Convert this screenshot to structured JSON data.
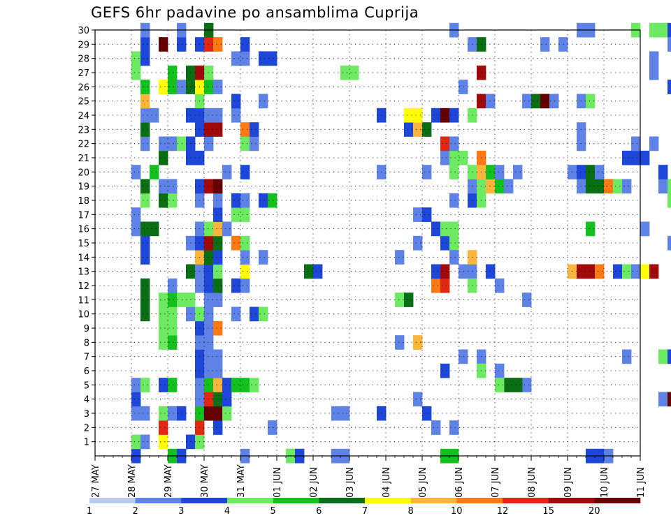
{
  "title": "GEFS 6hr padavine po ansamblima Cuprija",
  "chart_data": {
    "type": "heatmap",
    "title": "GEFS 6hr padavine po ansamblima Cuprija",
    "xlabel": "",
    "ylabel": "",
    "x_ticks": [
      "27 MAY",
      "28 MAY",
      "29 MAY",
      "30 MAY",
      "31 MAY",
      "01 JUN",
      "02 JUN",
      "03 JUN",
      "04 JUN",
      "05 JUN",
      "06 JUN",
      "07 JUN",
      "08 JUN",
      "09 JUN",
      "10 JUN",
      "11 JUN"
    ],
    "x_step": "6hr",
    "y_ticks": [
      1,
      2,
      3,
      4,
      5,
      6,
      7,
      8,
      9,
      10,
      11,
      12,
      13,
      14,
      15,
      16,
      17,
      18,
      19,
      20,
      21,
      22,
      23,
      24,
      25,
      26,
      27,
      28,
      29,
      30
    ],
    "ylim": [
      0,
      30
    ],
    "grid": true,
    "levels": [
      "1",
      "2",
      "3",
      "4",
      "5",
      "6",
      "7",
      "8",
      "10",
      "12",
      "15",
      "20"
    ],
    "level_colors": [
      "#bcc8ee",
      "#5f82e6",
      "#1e46d8",
      "#6eea62",
      "#14c01e",
      "#0a6e14",
      "#ffff00",
      "#ffb43c",
      "#ff7a14",
      "#e02814",
      "#a00a0a",
      "#640000"
    ],
    "cells": [
      [
        28,
        0,
        2
      ],
      [
        29,
        0,
        4
      ],
      [
        31,
        0,
        1
      ],
      [
        29.25,
        0,
        2
      ],
      [
        28,
        1,
        3
      ],
      [
        28.25,
        1,
        1
      ],
      [
        28.75,
        1,
        6
      ],
      [
        29.5,
        1,
        2
      ],
      [
        29.75,
        1,
        3
      ],
      [
        28.75,
        2,
        9
      ],
      [
        29.75,
        2,
        9
      ],
      [
        30.25,
        2,
        2
      ],
      [
        31.75,
        2,
        1
      ],
      [
        28,
        3,
        1
      ],
      [
        28.25,
        3,
        1
      ],
      [
        28.75,
        3,
        3
      ],
      [
        29,
        3,
        1
      ],
      [
        29.25,
        3,
        2
      ],
      [
        29.75,
        3,
        4
      ],
      [
        30,
        3,
        11
      ],
      [
        30.25,
        3,
        11
      ],
      [
        30.5,
        3,
        3
      ],
      [
        28,
        4,
        2
      ],
      [
        29.75,
        4,
        1
      ],
      [
        30,
        4,
        9
      ],
      [
        30.25,
        4,
        5
      ],
      [
        30.5,
        4,
        2
      ],
      [
        28,
        5,
        1
      ],
      [
        28.25,
        5,
        3
      ],
      [
        28.75,
        5,
        2
      ],
      [
        29,
        5,
        4
      ],
      [
        29.75,
        5,
        1
      ],
      [
        30,
        5,
        4
      ],
      [
        30.25,
        5,
        7
      ],
      [
        30.5,
        5,
        2
      ],
      [
        30.75,
        5,
        4
      ],
      [
        31,
        5,
        4
      ],
      [
        31.25,
        5,
        3
      ],
      [
        29.75,
        6,
        2
      ],
      [
        30,
        6,
        1
      ],
      [
        30.25,
        6,
        1
      ],
      [
        29.75,
        7,
        2
      ],
      [
        30,
        7,
        1
      ],
      [
        30.25,
        7,
        1
      ],
      [
        28.75,
        8,
        3
      ],
      [
        29,
        8,
        4
      ],
      [
        29.75,
        8,
        1
      ],
      [
        30,
        8,
        1
      ],
      [
        28.75,
        9,
        3
      ],
      [
        29,
        9,
        3
      ],
      [
        29.75,
        9,
        2
      ],
      [
        30,
        9,
        1
      ],
      [
        30.25,
        9,
        8
      ],
      [
        28.25,
        10,
        5
      ],
      [
        28.75,
        10,
        3
      ],
      [
        29,
        10,
        3
      ],
      [
        29.5,
        10,
        1
      ],
      [
        29.75,
        10,
        3
      ],
      [
        30,
        10,
        1
      ],
      [
        30.75,
        10,
        1
      ],
      [
        31.25,
        10,
        2
      ],
      [
        31.5,
        10,
        3
      ],
      [
        28.25,
        11,
        5
      ],
      [
        28.75,
        11,
        3
      ],
      [
        29,
        11,
        4
      ],
      [
        29.25,
        11,
        3
      ],
      [
        29.5,
        11,
        3
      ],
      [
        30,
        11,
        1
      ],
      [
        30.25,
        11,
        1
      ],
      [
        28.25,
        12,
        5
      ],
      [
        29,
        12,
        1
      ],
      [
        29.75,
        12,
        1
      ],
      [
        30,
        12,
        2
      ],
      [
        30.25,
        12,
        5
      ],
      [
        30.75,
        12,
        2
      ],
      [
        31,
        12,
        1
      ],
      [
        29.5,
        13,
        5
      ],
      [
        29.75,
        13,
        1
      ],
      [
        30,
        13,
        2
      ],
      [
        30.25,
        13,
        3
      ],
      [
        31,
        13,
        6
      ],
      [
        28.25,
        14,
        2
      ],
      [
        29.75,
        14,
        7
      ],
      [
        30,
        14,
        5
      ],
      [
        30.25,
        14,
        2
      ],
      [
        31,
        14,
        1
      ],
      [
        31.5,
        14,
        1
      ],
      [
        28.25,
        15,
        2
      ],
      [
        29.5,
        15,
        1
      ],
      [
        29.75,
        15,
        2
      ],
      [
        30,
        15,
        10
      ],
      [
        30.25,
        15,
        5
      ],
      [
        30.75,
        15,
        8
      ],
      [
        31,
        15,
        3
      ],
      [
        28,
        16,
        1
      ],
      [
        28.25,
        16,
        5
      ],
      [
        28.5,
        16,
        5
      ],
      [
        29.75,
        16,
        1
      ],
      [
        30,
        16,
        3
      ],
      [
        30.25,
        16,
        7
      ],
      [
        30.5,
        16,
        1
      ],
      [
        28,
        17,
        1
      ],
      [
        30.25,
        17,
        2
      ],
      [
        30.75,
        17,
        3
      ],
      [
        31,
        17,
        3
      ],
      [
        28.25,
        18,
        3
      ],
      [
        28.75,
        18,
        5
      ],
      [
        29,
        18,
        3
      ],
      [
        29.75,
        18,
        1
      ],
      [
        30.25,
        18,
        1
      ],
      [
        30.75,
        18,
        2
      ],
      [
        31,
        18,
        1
      ],
      [
        31.5,
        18,
        2
      ],
      [
        31.75,
        18,
        4
      ],
      [
        28.25,
        19,
        5
      ],
      [
        28.75,
        19,
        1
      ],
      [
        29,
        19,
        1
      ],
      [
        29.75,
        19,
        2
      ],
      [
        30,
        19,
        10
      ],
      [
        30.25,
        19,
        11
      ],
      [
        28,
        20,
        1
      ],
      [
        28.5,
        20,
        4
      ],
      [
        30.5,
        20,
        1
      ],
      [
        31,
        20,
        2
      ],
      [
        28.75,
        21,
        5
      ],
      [
        29.5,
        21,
        2
      ],
      [
        29.75,
        21,
        2
      ],
      [
        28.25,
        22,
        1
      ],
      [
        28.75,
        22,
        1
      ],
      [
        29,
        22,
        1
      ],
      [
        29.25,
        22,
        3
      ],
      [
        29.5,
        22,
        2
      ],
      [
        30,
        22,
        1
      ],
      [
        31,
        22,
        3
      ],
      [
        31.25,
        22,
        1
      ],
      [
        28.25,
        23,
        5
      ],
      [
        29.75,
        23,
        2
      ],
      [
        30,
        23,
        10
      ],
      [
        30.25,
        23,
        10
      ],
      [
        31,
        23,
        8
      ],
      [
        31.25,
        23,
        2
      ],
      [
        28.25,
        24,
        1
      ],
      [
        28.5,
        24,
        1
      ],
      [
        29.5,
        24,
        2
      ],
      [
        29.75,
        24,
        2
      ],
      [
        30,
        24,
        1
      ],
      [
        30.25,
        24,
        1
      ],
      [
        30.75,
        24,
        1
      ],
      [
        28.25,
        25,
        7
      ],
      [
        29.75,
        25,
        3
      ],
      [
        30.75,
        25,
        2
      ],
      [
        31.5,
        25,
        1
      ],
      [
        28.25,
        26,
        4
      ],
      [
        28.75,
        26,
        6
      ],
      [
        29,
        26,
        4
      ],
      [
        29.25,
        26,
        1
      ],
      [
        29.5,
        26,
        5
      ],
      [
        29.75,
        26,
        6
      ],
      [
        30,
        26,
        4
      ],
      [
        30.25,
        26,
        1
      ],
      [
        28,
        27,
        3
      ],
      [
        29,
        27,
        4
      ],
      [
        29.5,
        27,
        5
      ],
      [
        29.75,
        27,
        10
      ],
      [
        30,
        27,
        3
      ],
      [
        28,
        28,
        3
      ],
      [
        28.25,
        28,
        2
      ],
      [
        30.75,
        28,
        1
      ],
      [
        31,
        28,
        1
      ],
      [
        31.5,
        28,
        2
      ],
      [
        31.75,
        28,
        2
      ],
      [
        28.25,
        29,
        2
      ],
      [
        28.75,
        29,
        11
      ],
      [
        29.25,
        29,
        2
      ],
      [
        29.75,
        29,
        2
      ],
      [
        30,
        29,
        9
      ],
      [
        30.25,
        29,
        8
      ],
      [
        31,
        29,
        2
      ],
      [
        28.25,
        30,
        1
      ],
      [
        29.25,
        30,
        1
      ],
      [
        30,
        30,
        5
      ],
      [
        32.25,
        0,
        3
      ],
      [
        32.5,
        0,
        2
      ],
      [
        33.5,
        0,
        1
      ],
      [
        33.75,
        0,
        1
      ],
      [
        33.5,
        3,
        1
      ],
      [
        33.75,
        3,
        1
      ],
      [
        34.75,
        3,
        2
      ],
      [
        32.75,
        13,
        5
      ],
      [
        33,
        13,
        2
      ],
      [
        33.75,
        27,
        3
      ],
      [
        34,
        27,
        3
      ],
      [
        34.75,
        20,
        1
      ],
      [
        34.75,
        24,
        2
      ],
      [
        35.25,
        14,
        1
      ],
      [
        35.75,
        15,
        1
      ],
      [
        36.5,
        15,
        2
      ],
      [
        36.75,
        15,
        3
      ],
      [
        36.75,
        14,
        1
      ],
      [
        36.25,
        16,
        2
      ],
      [
        36.5,
        16,
        3
      ],
      [
        36.75,
        16,
        3
      ],
      [
        35.75,
        17,
        1
      ],
      [
        36,
        17,
        2
      ],
      [
        36.25,
        12,
        8
      ],
      [
        36.5,
        12,
        9
      ],
      [
        36.25,
        13,
        2
      ],
      [
        36.5,
        13,
        10
      ],
      [
        36.5,
        6,
        2
      ],
      [
        35.25,
        8,
        1
      ],
      [
        35.75,
        8,
        7
      ],
      [
        35.25,
        11,
        3
      ],
      [
        35.5,
        11,
        5
      ],
      [
        35.75,
        4,
        1
      ],
      [
        36,
        3,
        2
      ],
      [
        36.25,
        2,
        1
      ],
      [
        36.5,
        0,
        4
      ],
      [
        36.75,
        0,
        4
      ],
      [
        36.75,
        18,
        1
      ],
      [
        36,
        20,
        1
      ],
      [
        36.75,
        20,
        3
      ],
      [
        36.5,
        21,
        1
      ],
      [
        36.75,
        21,
        3
      ],
      [
        37,
        21,
        3
      ],
      [
        36.5,
        22,
        9
      ],
      [
        36.75,
        22,
        1
      ],
      [
        35.5,
        23,
        2
      ],
      [
        35.75,
        23,
        7
      ],
      [
        36,
        23,
        5
      ],
      [
        35.5,
        24,
        6
      ],
      [
        35.75,
        24,
        6
      ],
      [
        36.25,
        24,
        2
      ],
      [
        36.5,
        24,
        11
      ],
      [
        36.75,
        24,
        2
      ],
      [
        37.25,
        24,
        3
      ],
      [
        37,
        13,
        1
      ],
      [
        37.25,
        13,
        1
      ],
      [
        37.25,
        12,
        3
      ],
      [
        37.75,
        13,
        2
      ],
      [
        37.25,
        14,
        7
      ],
      [
        37.25,
        18,
        2
      ],
      [
        37.5,
        18,
        3
      ],
      [
        37.25,
        19,
        1
      ],
      [
        37.5,
        19,
        3
      ],
      [
        37.75,
        19,
        7
      ],
      [
        38,
        19,
        4
      ],
      [
        38.25,
        19,
        1
      ],
      [
        37.25,
        20,
        3
      ],
      [
        37.5,
        20,
        7
      ],
      [
        37.75,
        20,
        4
      ],
      [
        38,
        20,
        1
      ],
      [
        38.5,
        20,
        1
      ],
      [
        37.5,
        21,
        8
      ],
      [
        37,
        26,
        1
      ],
      [
        37.5,
        25,
        10
      ],
      [
        37.75,
        25,
        1
      ],
      [
        37.5,
        27,
        10
      ],
      [
        37.25,
        29,
        1
      ],
      [
        37.5,
        29,
        5
      ],
      [
        37,
        7,
        1
      ],
      [
        37.5,
        7,
        1
      ],
      [
        37.5,
        6,
        3
      ],
      [
        38,
        6,
        1
      ],
      [
        38.25,
        5,
        5
      ],
      [
        38.75,
        5,
        1
      ],
      [
        38,
        5,
        3
      ],
      [
        38.5,
        5,
        5
      ],
      [
        38.75,
        11,
        1
      ],
      [
        38,
        12,
        1
      ],
      [
        38.75,
        25,
        1
      ],
      [
        39,
        25,
        5
      ],
      [
        39.25,
        25,
        11
      ],
      [
        39.5,
        25,
        1
      ],
      [
        39.25,
        29,
        1
      ],
      [
        39.75,
        29,
        1
      ],
      [
        40.25,
        25,
        1
      ],
      [
        40.5,
        25,
        3
      ],
      [
        40.25,
        23,
        1
      ],
      [
        40.25,
        22,
        1
      ],
      [
        40,
        20,
        1
      ],
      [
        40.25,
        20,
        2
      ],
      [
        40.25,
        19,
        1
      ],
      [
        40.5,
        19,
        5
      ],
      [
        40.75,
        19,
        5
      ],
      [
        41,
        19,
        8
      ],
      [
        41.25,
        19,
        3
      ],
      [
        41.5,
        19,
        1
      ],
      [
        40.5,
        20,
        5
      ],
      [
        40.75,
        20,
        1
      ],
      [
        40.5,
        16,
        4
      ],
      [
        40,
        13,
        7
      ],
      [
        40.25,
        13,
        10
      ],
      [
        40.5,
        13,
        10
      ],
      [
        40.75,
        13,
        8
      ],
      [
        41.25,
        13,
        2
      ],
      [
        41.5,
        13,
        3
      ],
      [
        41.75,
        13,
        1
      ],
      [
        42,
        13,
        6
      ],
      [
        42.25,
        13,
        10
      ],
      [
        41.5,
        21,
        2
      ],
      [
        41.75,
        21,
        2
      ],
      [
        42,
        21,
        2
      ],
      [
        41.75,
        22,
        1
      ],
      [
        42.25,
        22,
        1
      ],
      [
        41.5,
        7,
        1
      ],
      [
        42.5,
        7,
        3
      ],
      [
        42.75,
        7,
        2
      ],
      [
        40.5,
        0,
        2
      ],
      [
        40.75,
        0,
        2
      ],
      [
        41,
        0,
        1
      ],
      [
        42.5,
        4,
        1
      ],
      [
        42.75,
        4,
        11
      ],
      [
        43,
        4,
        1
      ],
      [
        42,
        16,
        1
      ],
      [
        43,
        16,
        8
      ],
      [
        42.75,
        15,
        1
      ],
      [
        43,
        19,
        3
      ],
      [
        43,
        20,
        5
      ],
      [
        42.5,
        19,
        1
      ],
      [
        42.75,
        19,
        3
      ],
      [
        42.75,
        18,
        3
      ],
      [
        42.5,
        20,
        2
      ],
      [
        43,
        21,
        1
      ],
      [
        42.75,
        26,
        2
      ],
      [
        43,
        25,
        1
      ],
      [
        43,
        26,
        1
      ],
      [
        43,
        27,
        1
      ],
      [
        43,
        30,
        5
      ],
      [
        42.25,
        30,
        3
      ],
      [
        42.5,
        30,
        3
      ],
      [
        42.75,
        30,
        2
      ],
      [
        42.75,
        29,
        1
      ],
      [
        42.25,
        28,
        1
      ],
      [
        41.75,
        30,
        3
      ],
      [
        42.25,
        27,
        1
      ],
      [
        40.25,
        30,
        1
      ],
      [
        40.5,
        30,
        1
      ],
      [
        36.75,
        30,
        1
      ],
      [
        36.75,
        2,
        1
      ]
    ]
  },
  "colorbar": {
    "labels": [
      "1",
      "2",
      "3",
      "4",
      "5",
      "6",
      "7",
      "8",
      "10",
      "12",
      "15",
      "20"
    ]
  }
}
